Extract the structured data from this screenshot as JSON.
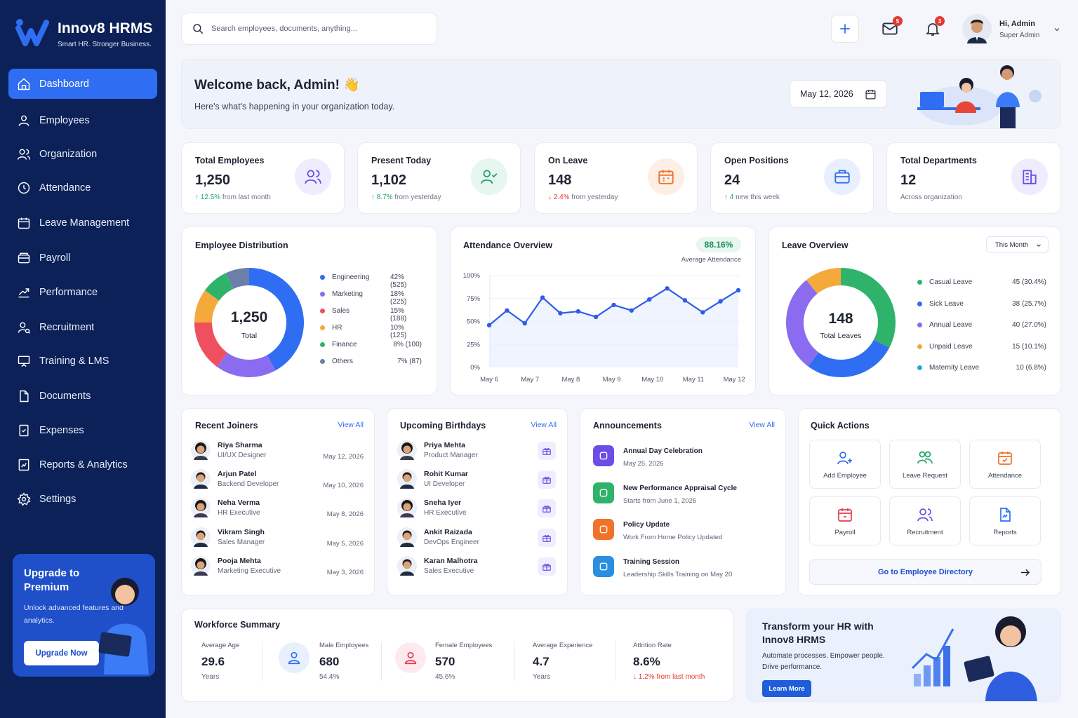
{
  "brand": {
    "name": "Innov8 HRMS",
    "tagline": "Smart HR. Stronger Business."
  },
  "sidebar": {
    "items": [
      {
        "label": "Dashboard",
        "icon": "home-icon",
        "active": true
      },
      {
        "label": "Employees",
        "icon": "user-icon"
      },
      {
        "label": "Organization",
        "icon": "users-icon"
      },
      {
        "label": "Attendance",
        "icon": "clock-icon"
      },
      {
        "label": "Leave Management",
        "icon": "calendar-icon"
      },
      {
        "label": "Payroll",
        "icon": "wallet-icon"
      },
      {
        "label": "Performance",
        "icon": "trend-icon"
      },
      {
        "label": "Recruitment",
        "icon": "user-search-icon"
      },
      {
        "label": "Training & LMS",
        "icon": "presentation-icon"
      },
      {
        "label": "Documents",
        "icon": "document-icon"
      },
      {
        "label": "Expenses",
        "icon": "receipt-icon"
      },
      {
        "label": "Reports & Analytics",
        "icon": "report-icon"
      },
      {
        "label": "Settings",
        "icon": "gear-icon"
      }
    ],
    "upgrade": {
      "title": "Upgrade to Premium",
      "description": "Unlock advanced features and analytics.",
      "button": "Upgrade Now"
    }
  },
  "header": {
    "search_placeholder": "Search employees, documents, anything...",
    "mail_count": "5",
    "notification_count": "3",
    "user_greeting": "Hi, Admin",
    "user_role": "Super Admin"
  },
  "welcome": {
    "title": "Welcome back, Admin! 👋",
    "subtitle": "Here's what's happening in your organization today.",
    "date": "May 12, 2026"
  },
  "stats": [
    {
      "label": "Total Employees",
      "value": "1,250",
      "trend": "↑ 12.5%",
      "trend_dir": "up",
      "sub": " from last month",
      "color": "#6c4ee6",
      "bg": "#efecfd"
    },
    {
      "label": "Present Today",
      "value": "1,102",
      "trend": "↑ 8.7%",
      "trend_dir": "up",
      "sub": " from yesterday",
      "color": "#21a366",
      "bg": "#e7f6ee"
    },
    {
      "label": "On Leave",
      "value": "148",
      "trend": "↓ 2.4%",
      "trend_dir": "down",
      "sub": " from yesterday",
      "color": "#f0722b",
      "bg": "#fdefe6"
    },
    {
      "label": "Open Positions",
      "value": "24",
      "trend": "↑ 4",
      "trend_dir": "up",
      "sub": " new this week",
      "color": "#2f6ef2",
      "bg": "#e8effd"
    },
    {
      "label": "Total Departments",
      "value": "12",
      "trend": "",
      "trend_dir": "",
      "sub": "Across organization",
      "color": "#6c4ee6",
      "bg": "#efecfd"
    }
  ],
  "distribution": {
    "title": "Employee Distribution",
    "center_value": "1,250",
    "center_label": "Total",
    "items": [
      {
        "name": "Engineering",
        "value": "42% (525)",
        "pct": 42,
        "color": "#2f6ef2"
      },
      {
        "name": "Marketing",
        "value": "18% (225)",
        "pct": 18,
        "color": "#8b6cf0"
      },
      {
        "name": "Sales",
        "value": "15% (188)",
        "pct": 15,
        "color": "#ef4f5f"
      },
      {
        "name": "HR",
        "value": "10% (125)",
        "pct": 10,
        "color": "#f6a93b"
      },
      {
        "name": "Finance",
        "value": "8% (100)",
        "pct": 8,
        "color": "#2fb36b"
      },
      {
        "name": "Others",
        "value": "7% (87)",
        "pct": 7,
        "color": "#6b7fa8"
      }
    ]
  },
  "attendance": {
    "title": "Attendance Overview",
    "average": "88.16%",
    "average_label": "Average Attendance"
  },
  "chart_data": {
    "type": "area",
    "title": "Attendance Overview",
    "y_ticks": [
      "100%",
      "75%",
      "50%",
      "25%",
      "0%"
    ],
    "x_ticks": [
      "May 6",
      "May 7",
      "May 8",
      "May 9",
      "May 10",
      "May 11",
      "May 12"
    ],
    "ylim": [
      0,
      100
    ],
    "x": [
      "May 6",
      "",
      "May 7",
      "",
      "May 8",
      "",
      "May 9",
      "",
      "May 10",
      "",
      "May 11",
      "",
      "May 12",
      "",
      ""
    ],
    "values": [
      46,
      62,
      48,
      76,
      59,
      61,
      55,
      68,
      62,
      74,
      86,
      73,
      60,
      72,
      84
    ]
  },
  "leave": {
    "title": "Leave Overview",
    "filter": "This Month",
    "center_value": "148",
    "center_label": "Total Leaves",
    "items": [
      {
        "name": "Casual Leave",
        "value": "45 (30.4%)",
        "pct": 30.4,
        "color": "#2fb36b"
      },
      {
        "name": "Sick Leave",
        "value": "38 (25.7%)",
        "pct": 25.7,
        "color": "#2f6ef2"
      },
      {
        "name": "Annual Leave",
        "value": "40 (27.0%)",
        "pct": 27.0,
        "color": "#8b6cf0"
      },
      {
        "name": "Unpaid Leave",
        "value": "15 (10.1%)",
        "pct": 10.1,
        "color": "#f6a93b"
      },
      {
        "name": "Maternity Leave",
        "value": "10 (6.8%)",
        "pct": 6.8,
        "color": "#27a8d6"
      }
    ]
  },
  "joiners": {
    "title": "Recent Joiners",
    "view_all": "View All",
    "items": [
      {
        "name": "Riya Sharma",
        "role": "UI/UX Designer",
        "date": "May 12, 2026"
      },
      {
        "name": "Arjun Patel",
        "role": "Backend Developer",
        "date": "May 10, 2026"
      },
      {
        "name": "Neha Verma",
        "role": "HR Executive",
        "date": "May 8, 2026"
      },
      {
        "name": "Vikram Singh",
        "role": "Sales Manager",
        "date": "May 5, 2026"
      },
      {
        "name": "Pooja Mehta",
        "role": "Marketing Executive",
        "date": "May 3, 2026"
      }
    ]
  },
  "birthdays": {
    "title": "Upcoming Birthdays",
    "view_all": "View All",
    "items": [
      {
        "name": "Priya Mehta",
        "role": "Product Manager"
      },
      {
        "name": "Rohit Kumar",
        "role": "UI Developer"
      },
      {
        "name": "Sneha Iyer",
        "role": "HR Executive"
      },
      {
        "name": "Ankit Raizada",
        "role": "DevOps Engineer"
      },
      {
        "name": "Karan Malhotra",
        "role": "Sales Executive"
      }
    ]
  },
  "announcements": {
    "title": "Announcements",
    "view_all": "View All",
    "items": [
      {
        "title": "Annual Day Celebration",
        "sub": "May 25, 2026",
        "color": "#6c4ee6",
        "icon": "megaphone-icon"
      },
      {
        "title": "New Performance Appraisal Cycle",
        "sub": "Starts from June 1, 2026",
        "color": "#2fb36b",
        "icon": "calendar-check-icon"
      },
      {
        "title": "Policy Update",
        "sub": "Work From Home Policy Updated",
        "color": "#f0722b",
        "icon": "shield-icon"
      },
      {
        "title": "Training Session",
        "sub": "Leadership Skills Training on May 20",
        "color": "#2a8fe0",
        "icon": "camera-icon"
      }
    ]
  },
  "quick_actions": {
    "title": "Quick Actions",
    "items": [
      {
        "label": "Add Employee",
        "color": "#2f6ef2",
        "icon": "user-plus-icon"
      },
      {
        "label": "Leave Request",
        "color": "#21a366",
        "icon": "users-icon"
      },
      {
        "label": "Attendance",
        "color": "#f0722b",
        "icon": "calendar-icon"
      },
      {
        "label": "Payroll",
        "color": "#e5394f",
        "icon": "calendar-dollar-icon"
      },
      {
        "label": "Recruitment",
        "color": "#6c4ee6",
        "icon": "users-icon"
      },
      {
        "label": "Reports",
        "color": "#2f6ef2",
        "icon": "report-icon"
      }
    ],
    "directory": "Go to Employee Directory"
  },
  "workforce": {
    "title": "Workforce Summary",
    "items": [
      {
        "label": "Average Age",
        "value": "29.6",
        "sub": "Years"
      },
      {
        "label": "Male Employees",
        "value": "680",
        "sub": "54.4%"
      },
      {
        "label": "Female Employees",
        "value": "570",
        "sub": "45.6%"
      },
      {
        "label": "Average Experience",
        "value": "4.7",
        "sub": "Years"
      },
      {
        "label": "Attrition Rate",
        "value": "8.6%",
        "sub": "↓ 1.2% from last month"
      }
    ]
  },
  "promo": {
    "title": "Transform your HR with Innov8 HRMS",
    "description": "Automate processes. Empower people. Drive performance.",
    "button": "Learn More"
  }
}
